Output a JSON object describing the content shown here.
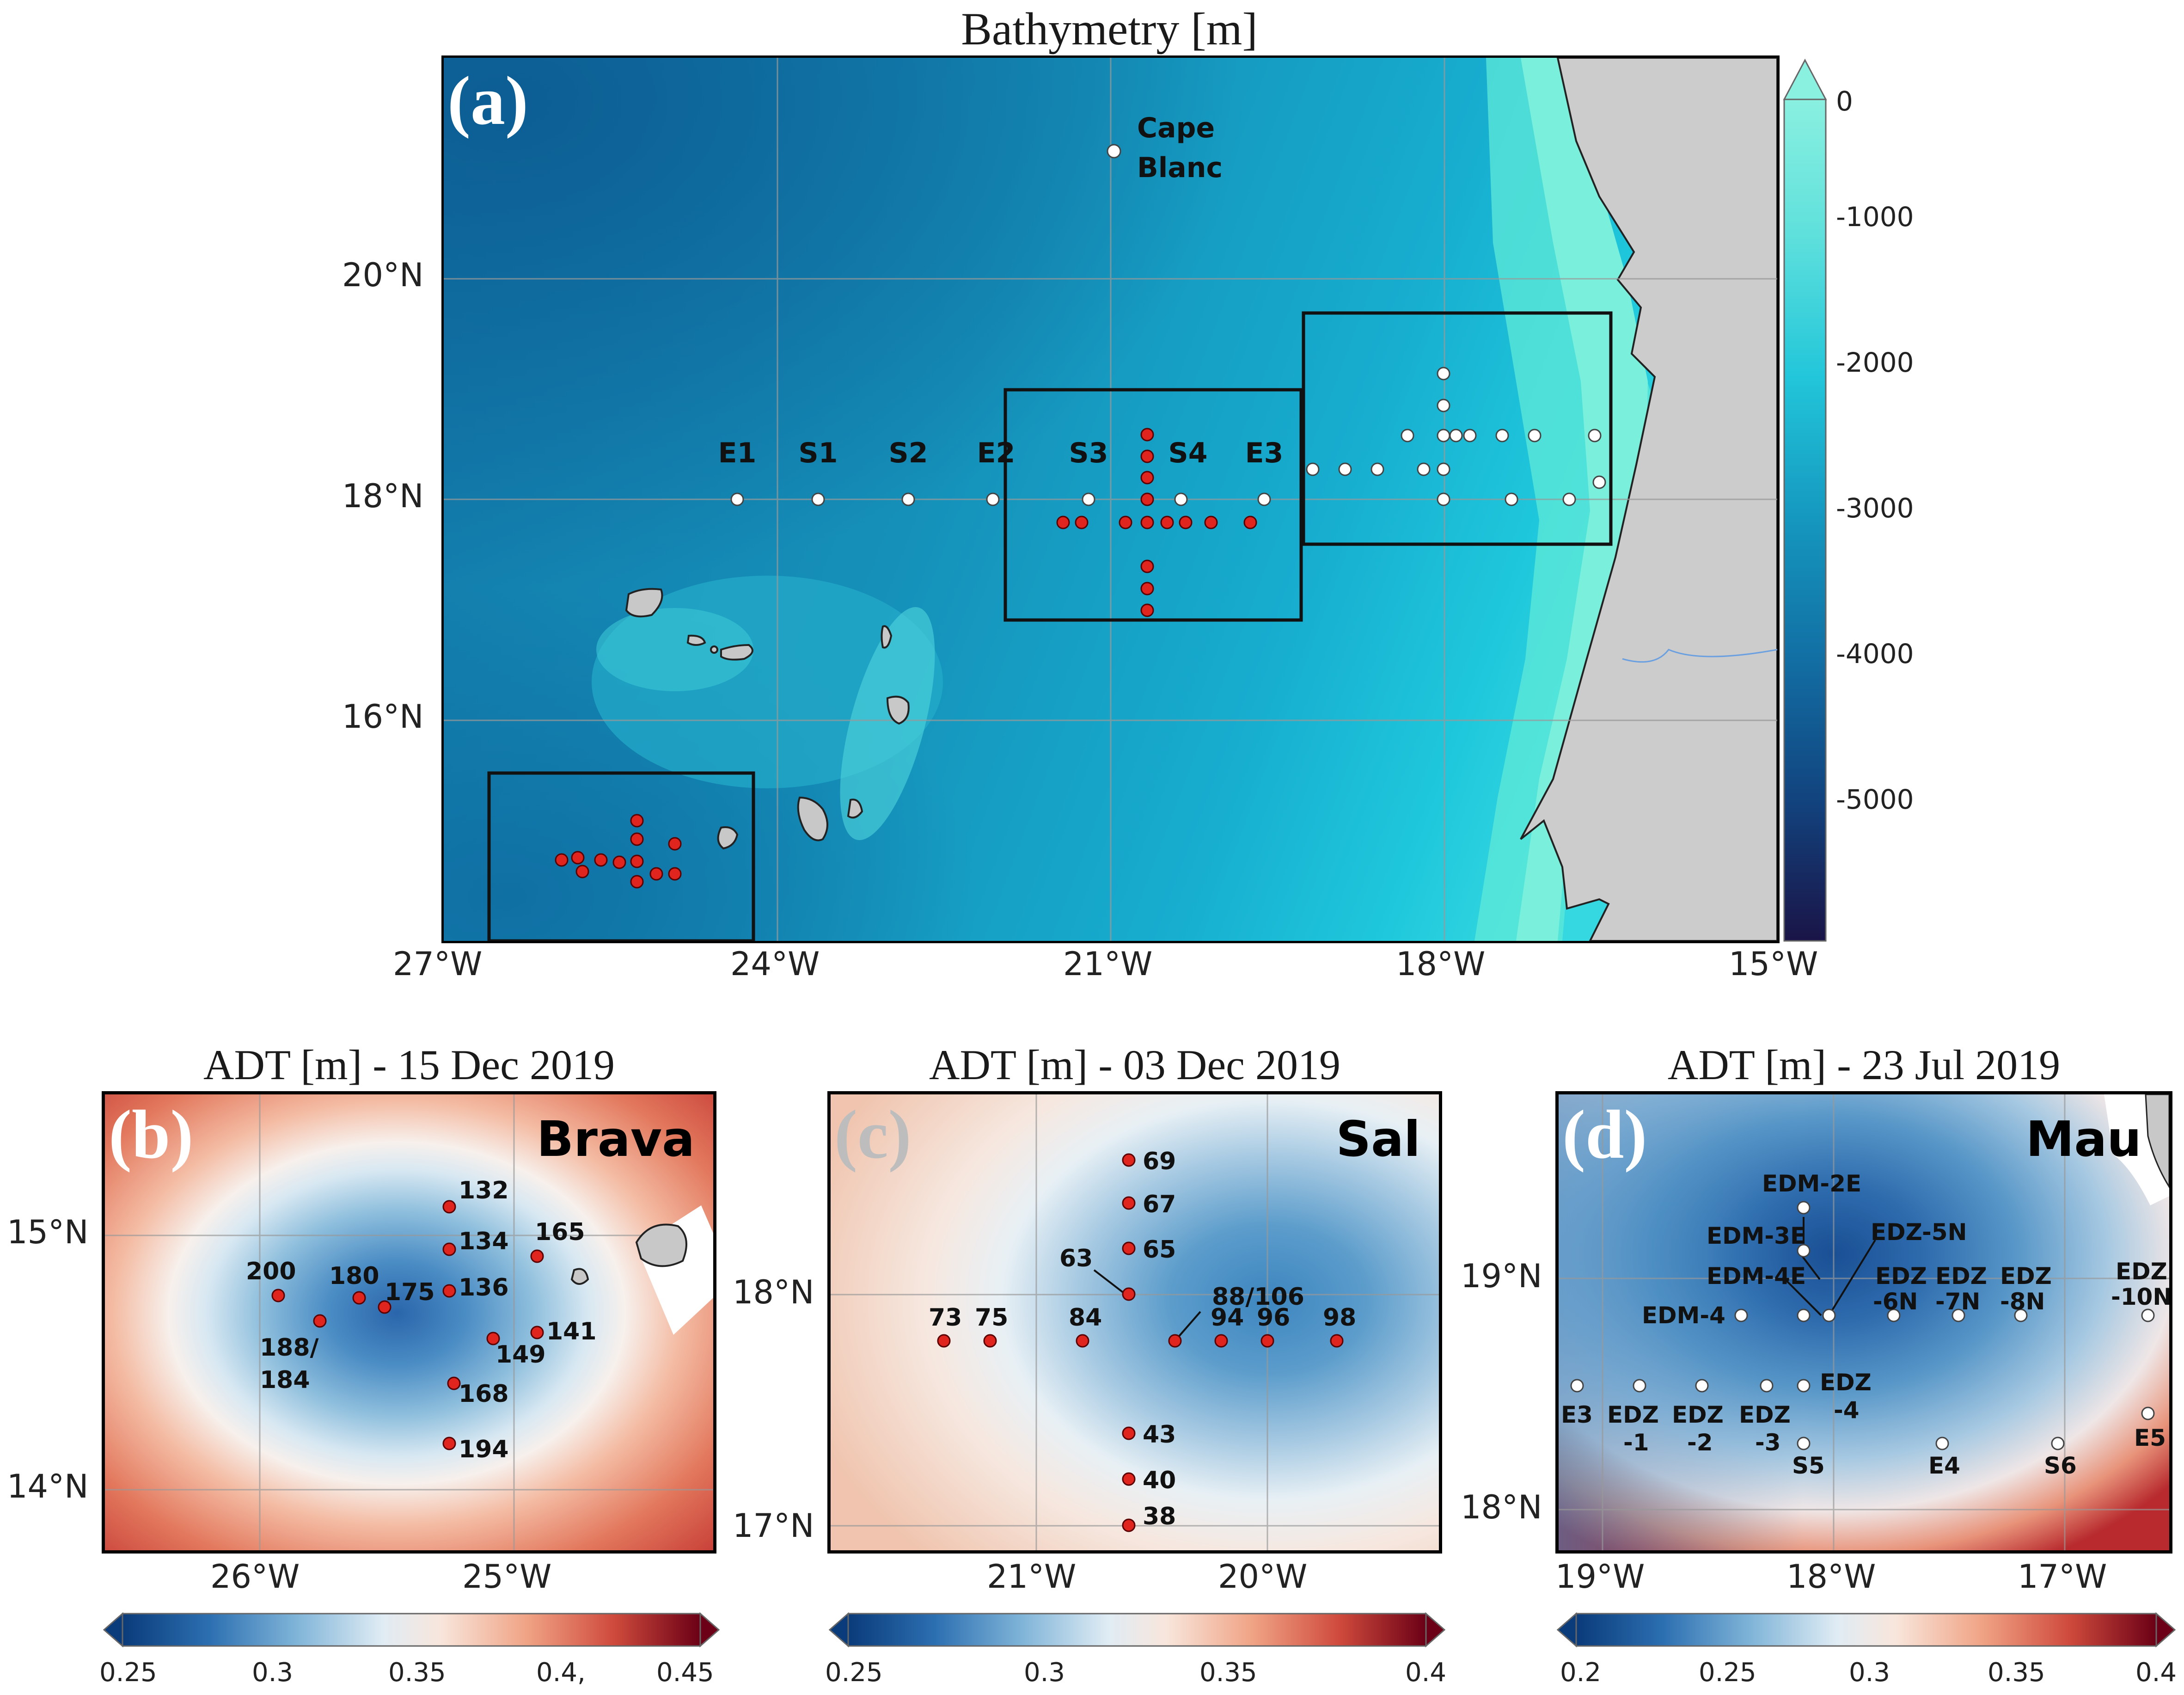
{
  "panel_a": {
    "title": "Bathymetry [m]",
    "letter": "(a)",
    "colorbar_ticks": [
      "0",
      "-1000",
      "-2000",
      "-3000",
      "-4000",
      "-5000"
    ],
    "lon_ticks": [
      "27°W",
      "24°W",
      "21°W",
      "18°W",
      "15°W"
    ],
    "lat_ticks": [
      "20°N",
      "18°N",
      "16°N"
    ],
    "cape_label": [
      "Cape",
      "Blanc"
    ],
    "station_labels": [
      "E1",
      "S1",
      "S2",
      "E2",
      "S3",
      "S4",
      "E3"
    ]
  },
  "panel_b": {
    "title": "ADT [m] - 15 Dec 2019",
    "letter": "(b)",
    "name": "Brava",
    "lon_ticks": [
      "26°W",
      "25°W"
    ],
    "lat_ticks": [
      "15°N",
      "14°N"
    ],
    "colorbar_ticks": [
      "0.25",
      "0.3",
      "0.35",
      "0.4,",
      "0.45"
    ],
    "station_labels": [
      "132",
      "134",
      "165",
      "200",
      "180",
      "175",
      "136",
      "141",
      "188/",
      "184",
      "149",
      "168",
      "194"
    ]
  },
  "panel_c": {
    "title": "ADT [m] - 03 Dec 2019",
    "letter": "(c)",
    "name": "Sal",
    "lon_ticks": [
      "21°W",
      "20°W"
    ],
    "lat_ticks": [
      "18°N",
      "17°N"
    ],
    "colorbar_ticks": [
      "0.25",
      "0.3",
      "0.35",
      "0.4"
    ],
    "station_labels": [
      "69",
      "67",
      "65",
      "63",
      "88/106",
      "73",
      "75",
      "84",
      "94",
      "96",
      "98",
      "43",
      "40",
      "38"
    ]
  },
  "panel_d": {
    "title": "ADT [m] - 23 Jul 2019",
    "letter": "(d)",
    "name": "Mau",
    "lon_ticks": [
      "19°W",
      "18°W",
      "17°W"
    ],
    "lat_ticks": [
      "19°N",
      "18°N"
    ],
    "colorbar_ticks": [
      "0.2",
      "0.25",
      "0.3",
      "0.35",
      "0.4"
    ],
    "station_labels": [
      "EDM-2E",
      "EDM-3E",
      "EDZ-5N",
      "EDM-4E",
      "EDZ",
      "-6N",
      "EDZ",
      "-7N",
      "EDZ",
      "-8N",
      "EDZ",
      "-10N",
      "EDM-4",
      "E3",
      "EDZ",
      "-1",
      "EDZ",
      "-2",
      "EDZ",
      "-3",
      "EDZ",
      "-4",
      "S5",
      "E4",
      "S6",
      "E5"
    ]
  }
}
